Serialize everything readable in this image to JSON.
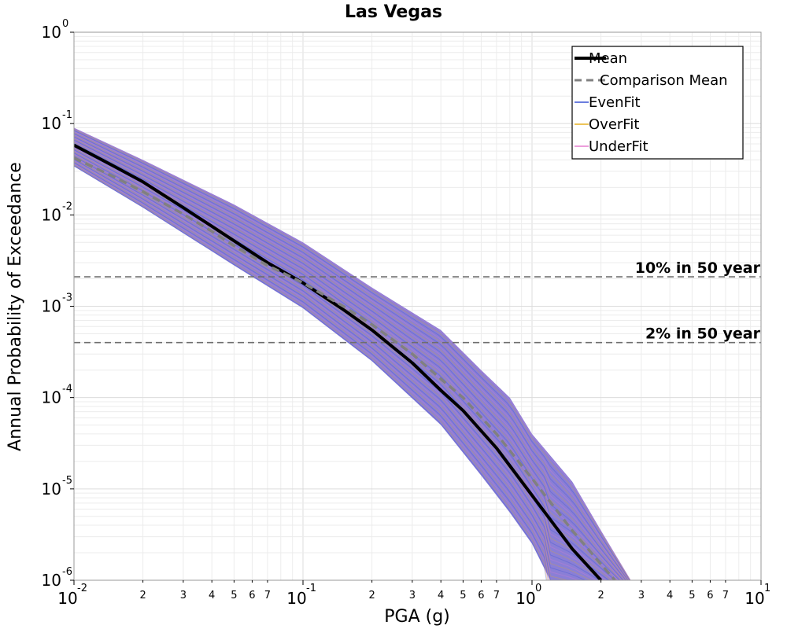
{
  "chart_data": {
    "type": "line",
    "title": "Las Vegas",
    "xlabel": "PGA (g)",
    "ylabel": "Annual Probability of Exceedance",
    "xscale": "log",
    "yscale": "log",
    "xlim": [
      0.01,
      10
    ],
    "ylim": [
      1e-06,
      1
    ],
    "grid": true,
    "legend_position": "top-right",
    "x_major_ticks": [
      {
        "base": "10",
        "exp": "-2"
      },
      {
        "base": "10",
        "exp": "-1"
      },
      {
        "base": "10",
        "exp": "0"
      },
      {
        "base": "10",
        "exp": "1"
      }
    ],
    "y_major_ticks": [
      {
        "base": "10",
        "exp": "-6"
      },
      {
        "base": "10",
        "exp": "-5"
      },
      {
        "base": "10",
        "exp": "-4"
      },
      {
        "base": "10",
        "exp": "-3"
      },
      {
        "base": "10",
        "exp": "-2"
      },
      {
        "base": "10",
        "exp": "-1"
      },
      {
        "base": "10",
        "exp": "0"
      }
    ],
    "x_minor_tick_labels": [
      "2",
      "3",
      "4",
      "5",
      "6",
      "7"
    ],
    "reference_lines": [
      {
        "label": "10% in 50 year",
        "y": 0.0021
      },
      {
        "label": "2% in 50 year",
        "y": 0.0004
      }
    ],
    "series": [
      {
        "name": "Mean",
        "color": "#000000",
        "style": "solid",
        "x": [
          0.01,
          0.015,
          0.02,
          0.03,
          0.04,
          0.05,
          0.07,
          0.1,
          0.15,
          0.2,
          0.3,
          0.4,
          0.5,
          0.7,
          1.0,
          1.5,
          2.0
        ],
        "y": [
          0.058,
          0.034,
          0.023,
          0.012,
          0.0075,
          0.0052,
          0.003,
          0.0018,
          0.00092,
          0.00055,
          0.00024,
          0.00012,
          7.2e-05,
          2.8e-05,
          8.5e-06,
          2.2e-06,
          1e-06
        ]
      },
      {
        "name": "Comparison Mean",
        "color": "#808080",
        "style": "dashed",
        "x": [
          0.01,
          0.015,
          0.02,
          0.03,
          0.04,
          0.05,
          0.07,
          0.1,
          0.15,
          0.2,
          0.3,
          0.4,
          0.5,
          0.7,
          1.0,
          1.5,
          2.0,
          2.3
        ],
        "y": [
          0.042,
          0.026,
          0.018,
          0.0102,
          0.0066,
          0.0046,
          0.0028,
          0.0018,
          0.001,
          0.00063,
          0.0003,
          0.00016,
          0.0001,
          4e-05,
          1.3e-05,
          3.5e-06,
          1.5e-06,
          1e-06
        ]
      },
      {
        "name": "EvenFit",
        "color": "#3a54d4",
        "style": "thin",
        "band_upper": {
          "x": [
            0.01,
            0.02,
            0.05,
            0.1,
            0.2,
            0.4,
            0.6,
            0.8,
            1.0,
            1.5,
            2.0,
            2.7
          ],
          "y": [
            0.09,
            0.04,
            0.013,
            0.005,
            0.0016,
            0.00055,
            0.0002,
            0.0001,
            4e-05,
            1.2e-05,
            3.5e-06,
            1e-06
          ]
        },
        "band_lower": {
          "x": [
            0.01,
            0.02,
            0.05,
            0.1,
            0.2,
            0.4,
            0.6,
            0.8,
            1.0,
            1.2
          ],
          "y": [
            0.034,
            0.012,
            0.0028,
            0.00095,
            0.00025,
            5e-05,
            1.4e-05,
            5.5e-06,
            2.5e-06,
            1e-06
          ]
        }
      },
      {
        "name": "OverFit",
        "color": "#e6b022",
        "style": "thin"
      },
      {
        "name": "UnderFit",
        "color": "#e67fcf",
        "style": "thin"
      }
    ]
  }
}
